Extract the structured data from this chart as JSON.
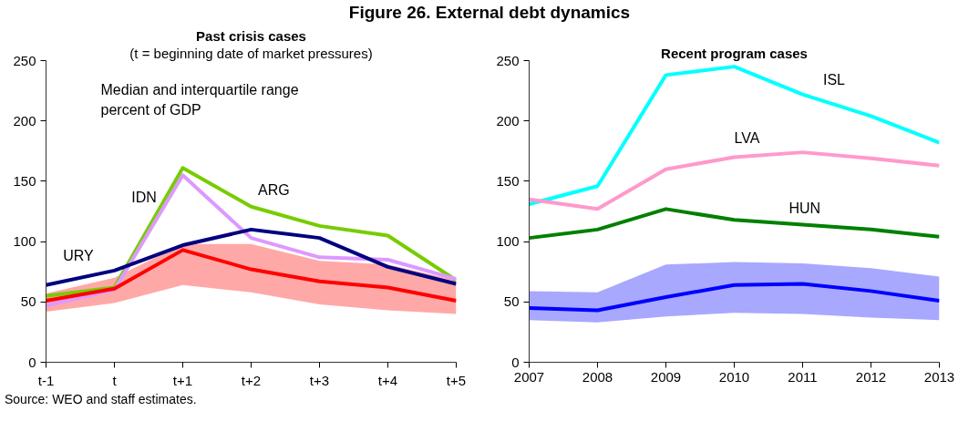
{
  "chart_data": [
    {
      "type": "line",
      "title": "Past crisis cases",
      "subtitle": "(t = beginning date of market pressures)",
      "categories": [
        "t-1",
        "t",
        "t+1",
        "t+2",
        "t+3",
        "t+4",
        "t+5"
      ],
      "series": [
        {
          "name": "ARG",
          "color": "#77cc00",
          "values": [
            55,
            62,
            161,
            129,
            113,
            105,
            68
          ]
        },
        {
          "name": "IDN",
          "color": "#dd99ff",
          "values": [
            47,
            60,
            155,
            103,
            87,
            85,
            69
          ]
        },
        {
          "name": "URY",
          "color": "#000080",
          "values": [
            64,
            76,
            97,
            110,
            103,
            79,
            65
          ]
        },
        {
          "color": "#ff0000",
          "values": [
            51,
            61,
            93,
            77,
            67,
            62,
            51
          ],
          "lower": [
            42,
            49,
            64,
            58,
            48,
            43,
            40
          ],
          "upper": [
            57,
            70,
            98,
            98,
            84,
            81,
            68
          ]
        }
      ],
      "ylim": [
        0,
        250
      ],
      "yticks": [
        0,
        50,
        100,
        150,
        200,
        250
      ],
      "grid": false,
      "legend": false,
      "marker": "none",
      "line_style": "solid",
      "annotations": [
        "Figure 26. External debt dynamics",
        "Median and interquartile range\npercent of GDP",
        "Source: WEO and staff estimates."
      ]
    },
    {
      "type": "line",
      "title": "Recent program cases",
      "x": [
        2007,
        2008,
        2009,
        2010,
        2011,
        2012,
        2013
      ],
      "series": [
        {
          "name": "ISL",
          "color": "#00ffff",
          "values": [
            131,
            146,
            238,
            245,
            222,
            204,
            182
          ]
        },
        {
          "name": "LVA",
          "color": "#ff99cc",
          "values": [
            135,
            127,
            160,
            170,
            174,
            169,
            163
          ]
        },
        {
          "name": "HUN",
          "color": "#008000",
          "values": [
            103,
            110,
            127,
            118,
            114,
            110,
            104
          ]
        },
        {
          "color": "#0000ff",
          "values": [
            45,
            43,
            54,
            64,
            65,
            59,
            51
          ],
          "lower": [
            35,
            33,
            38,
            41,
            40,
            37,
            35
          ],
          "upper": [
            59,
            58,
            81,
            83,
            82,
            78,
            71
          ]
        }
      ],
      "xlim": [
        2007,
        2013
      ],
      "xticks": [
        2007,
        2008,
        2009,
        2010,
        2011,
        2012,
        2013
      ],
      "ylim": [
        0,
        250
      ],
      "yticks": [
        0,
        50,
        100,
        150,
        200,
        250
      ],
      "grid": false,
      "legend": false,
      "marker": "none",
      "line_style": "solid"
    }
  ]
}
